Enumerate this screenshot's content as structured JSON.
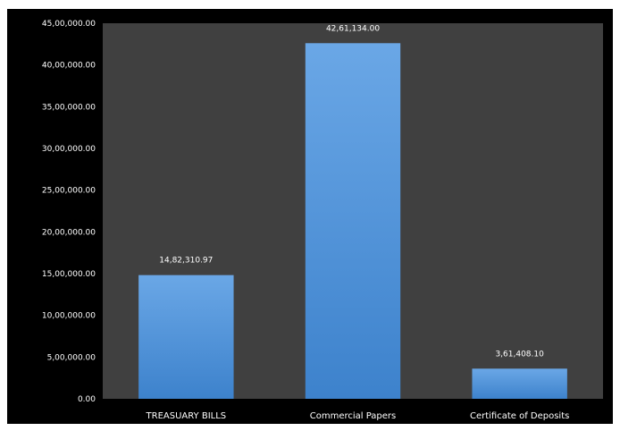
{
  "colors": {
    "outer_frame": "#ffffff",
    "chart_background": "#000000",
    "plot_background": "#404040",
    "bar_top": "#6aa7e6",
    "bar_bottom": "#3d82cc",
    "text": "#ffffff"
  },
  "chart_data": {
    "type": "bar",
    "title": "",
    "xlabel": "",
    "ylabel": "",
    "categories": [
      "TREASUARY BILLS",
      "Commercial Papers",
      "Certificate of Deposits"
    ],
    "values": [
      1482310.97,
      4261134.0,
      361408.1
    ],
    "data_labels": [
      "14,82,310.97",
      "42,61,134.00",
      "3,61,408.10"
    ],
    "ylim": [
      0,
      4500000
    ],
    "yticks": [
      0,
      500000,
      1000000,
      1500000,
      2000000,
      2500000,
      3000000,
      3500000,
      4000000,
      4500000
    ],
    "ytick_labels": [
      "0.00",
      "5,00,000.00",
      "10,00,000.00",
      "15,00,000.00",
      "20,00,000.00",
      "25,00,000.00",
      "30,00,000.00",
      "35,00,000.00",
      "40,00,000.00",
      "45,00,000.00"
    ],
    "grid": false,
    "legend": "none"
  }
}
